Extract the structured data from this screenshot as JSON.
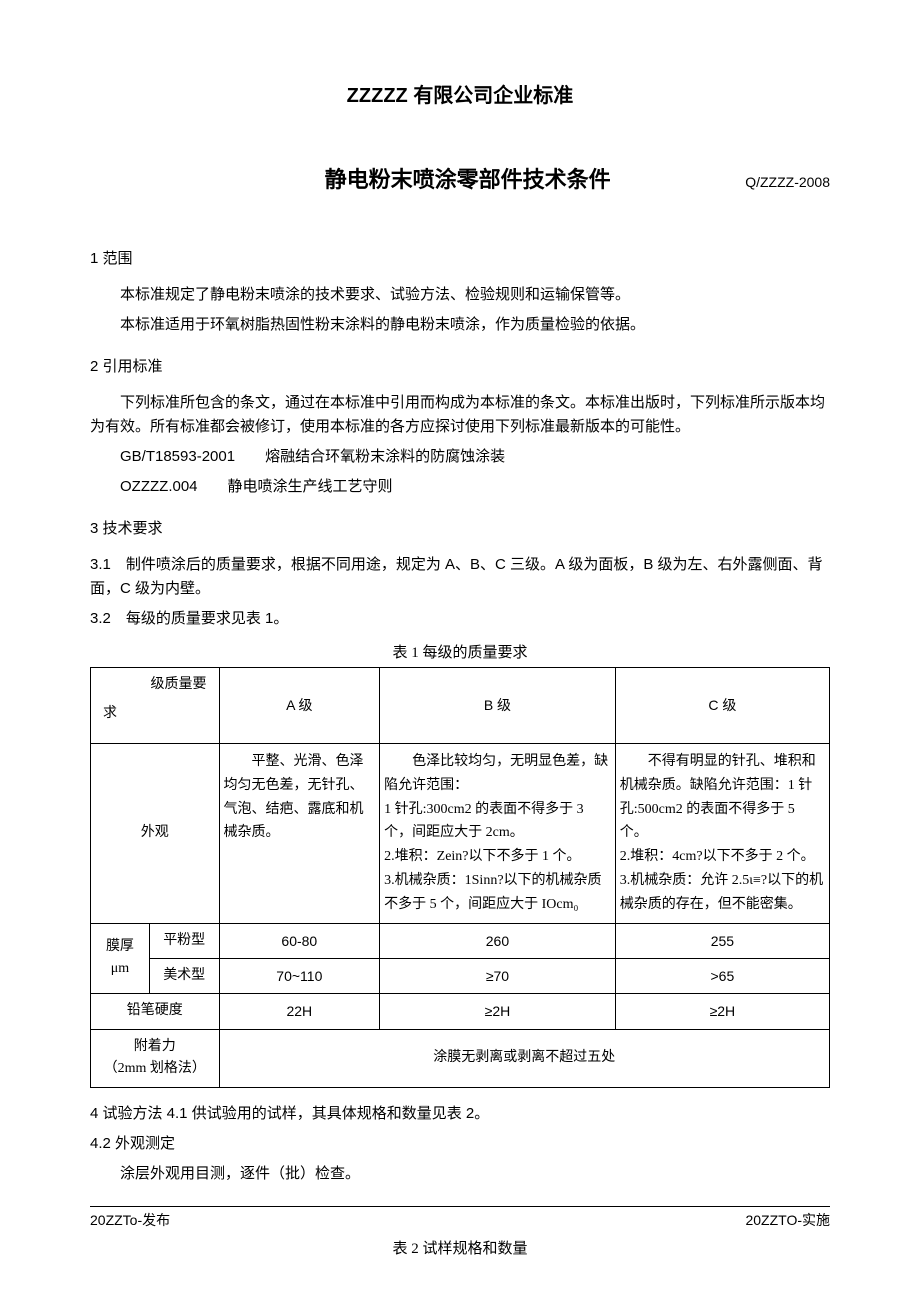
{
  "header": {
    "company_title": "ZZZZZ 有限公司企业标准",
    "doc_title": "静电粉末喷涂零部件技术条件",
    "doc_code": "Q/ZZZZ-2008"
  },
  "sec1": {
    "heading": "1 范围",
    "p1": "本标准规定了静电粉末喷涂的技术要求、试验方法、检验规则和运输保管等。",
    "p2": "本标准适用于环氧树脂热固性粉末涂料的静电粉末喷涂，作为质量检验的依据。"
  },
  "sec2": {
    "heading": "2 引用标准",
    "p1": "下列标准所包含的条文，通过在本标准中引用而构成为本标准的条文。本标准出版时，下列标准所示版本均为有效。所有标准都会被修订，使用本标准的各方应探讨使用下列标准最新版本的可能性。",
    "ref1": "GB/T18593-2001  熔融结合环氧粉末涂料的防腐蚀涂装",
    "ref2": "OZZZZ.004  静电喷涂生产线工艺守则"
  },
  "sec3": {
    "heading": "3 技术要求",
    "p31": "3.1 制件喷涂后的质量要求，根据不同用途，规定为 A、B、C 三级。A 级为面板，B 级为左、右外露侧面、背面，C 级为内壁。",
    "p32": "3.2 每级的质量要求见表 1。"
  },
  "table1": {
    "caption": "表 1 每级的质量要求",
    "diag_top": "级质量要",
    "diag_bot": "求",
    "col_a": "A 级",
    "col_b": "B 级",
    "col_c": "C 级",
    "row_appearance": "外观",
    "cell_a": "  平整、光滑、色泽均匀无色差，无针孔、气泡、结疤、露底和机械杂质。",
    "cell_b": "  色泽比较均匀，无明显色差，缺陷允许范围：\n1 针孔:300cm2 的表面不得多于 3 个，间距应大于 2cm。\n2.堆积：Zein?以下不多于 1 个。\n3.机械杂质：1Sinn?以下的机械杂质不多于 5 个，间距应大于 IOcm₀",
    "cell_c": "  不得有明显的针孔、堆积和机械杂质。缺陷允许范围：1 针孔:500cm2 的表面不得多于 5 个。\n2.堆积：4cm?以下不多于 2 个。\n3.机械杂质：允许 2.5ι≡?以下的机械杂质的存在，但不能密集。",
    "row_thickness": "膜厚",
    "row_thickness_unit": "μm",
    "thickness_flat": "平粉型",
    "thickness_art": "美术型",
    "flat_a": "60-80",
    "flat_b": "260",
    "flat_c": "255",
    "art_a": "70~110",
    "art_b": "≥70",
    "art_c": ">65",
    "row_hardness": "铅笔硬度",
    "hard_a": "22H",
    "hard_b": "≥2H",
    "hard_c": "≥2H",
    "row_adhesion_l1": "附着力",
    "row_adhesion_l2": "（2mm 划格法）",
    "adhesion_val": "涂膜无剥离或剥离不超过五处"
  },
  "sec4": {
    "p41": "4 试验方法 4.1 供试验用的试样，其具体规格和数量见表 2。",
    "p42": "4.2 外观测定",
    "p42_body": "涂层外观用目测，逐件（批）检查。"
  },
  "footer": {
    "left": "20ZZTo-发布",
    "right": "20ZZTO-实施"
  },
  "table2": {
    "caption": "表 2 试样规格和数量"
  },
  "colors": {
    "text": "#000000",
    "background": "#ffffff",
    "border": "#000000"
  }
}
